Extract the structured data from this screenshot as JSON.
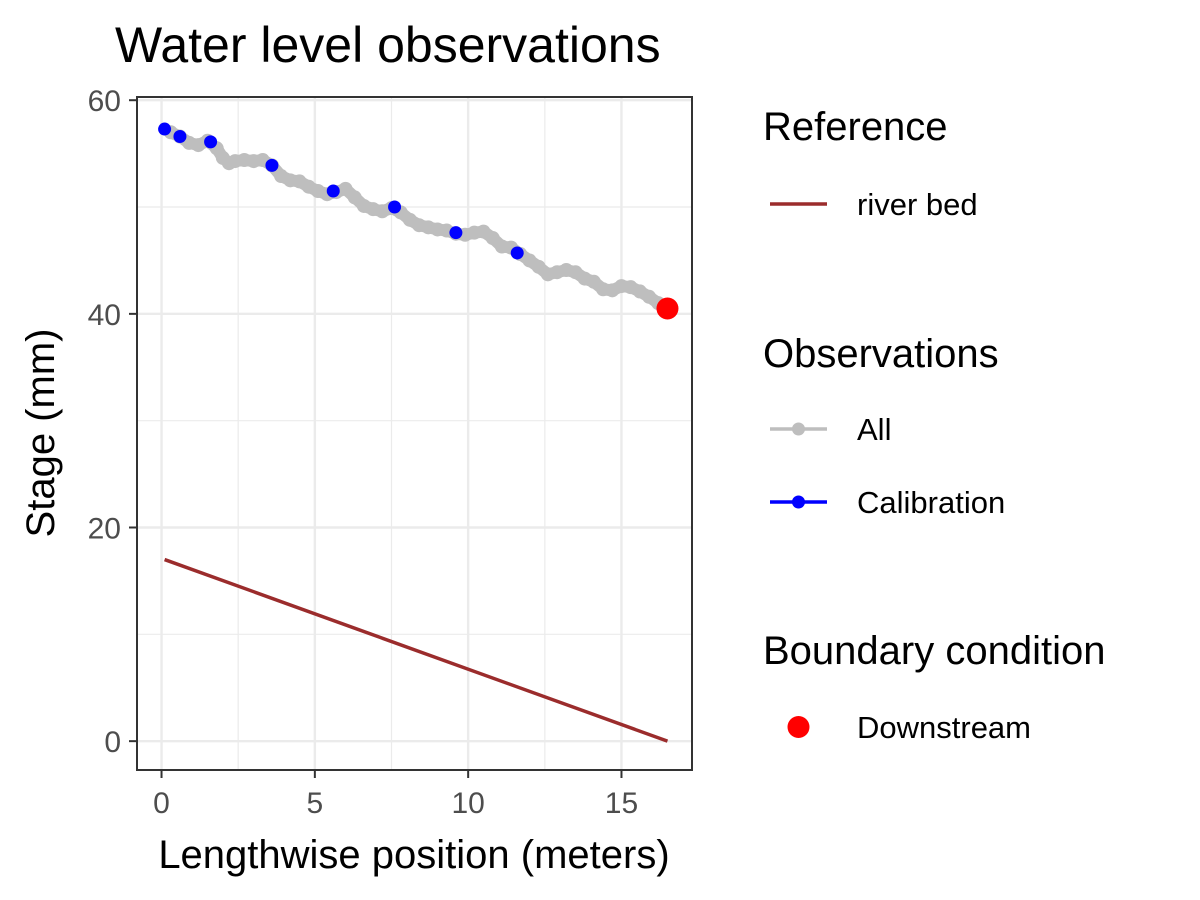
{
  "chart_data": {
    "type": "line",
    "title": "Water level observations",
    "xlabel": "Lengthwise position (meters)",
    "ylabel": "Stage (mm)",
    "xlim": [
      -0.8,
      17.3
    ],
    "ylim": [
      -2.7,
      60.3
    ],
    "x_ticks": [
      0,
      5,
      10,
      15
    ],
    "x_tick_labels": [
      "0",
      "5",
      "10",
      "15"
    ],
    "y_ticks": [
      0,
      20,
      40,
      60
    ],
    "y_tick_labels": [
      "0",
      "20",
      "40",
      "60"
    ],
    "grid": true,
    "legend_position": "right",
    "series": [
      {
        "name": "river bed",
        "color": "#9b2c2c",
        "x": [
          0.1,
          16.5
        ],
        "y": [
          17.0,
          0.0
        ]
      },
      {
        "name": "All",
        "color": "#bebebe",
        "x": [
          0.3,
          0.6,
          0.9,
          1.2,
          1.5,
          1.8,
          2.0,
          2.2,
          2.4,
          2.7,
          3.0,
          3.3,
          3.6,
          3.9,
          4.2,
          4.5,
          4.8,
          5.1,
          5.4,
          5.7,
          6.0,
          6.3,
          6.6,
          6.9,
          7.2,
          7.5,
          7.8,
          8.1,
          8.4,
          8.7,
          9.0,
          9.3,
          9.6,
          9.9,
          10.2,
          10.5,
          10.8,
          11.1,
          11.4,
          11.7,
          12.0,
          12.3,
          12.6,
          12.9,
          13.2,
          13.5,
          13.8,
          14.1,
          14.4,
          14.7,
          15.0,
          15.3,
          15.6,
          15.9,
          16.2
        ],
        "y": [
          57.0,
          56.6,
          56.0,
          55.8,
          56.2,
          55.5,
          54.6,
          54.1,
          54.3,
          54.4,
          54.3,
          54.4,
          53.9,
          52.9,
          52.5,
          52.4,
          51.9,
          51.5,
          51.2,
          51.4,
          51.7,
          50.9,
          50.1,
          49.8,
          49.6,
          49.9,
          49.5,
          48.8,
          48.3,
          48.1,
          47.9,
          47.8,
          47.5,
          47.4,
          47.6,
          47.7,
          47.1,
          46.3,
          46.2,
          45.6,
          45.0,
          44.4,
          43.7,
          43.9,
          44.1,
          43.9,
          43.3,
          43.0,
          42.3,
          42.2,
          42.6,
          42.5,
          42.1,
          41.6,
          41.0
        ]
      },
      {
        "name": "Calibration",
        "color": "#0000ff",
        "x": [
          0.1,
          0.6,
          1.6,
          3.6,
          5.6,
          7.6,
          9.6,
          11.6
        ],
        "y": [
          57.3,
          56.6,
          56.1,
          53.9,
          51.5,
          50.0,
          47.6,
          45.7
        ]
      },
      {
        "name": "Downstream",
        "color": "#ff0000",
        "x": [
          16.5
        ],
        "y": [
          40.5
        ]
      }
    ]
  },
  "legend": {
    "groups": [
      {
        "title": "Reference",
        "items": [
          {
            "label": "river bed",
            "color": "#9b2c2c",
            "kind": "line"
          }
        ]
      },
      {
        "title": "Observations",
        "items": [
          {
            "label": "All",
            "color": "#bebebe",
            "kind": "line-point"
          },
          {
            "label": "Calibration",
            "color": "#0000ff",
            "kind": "line-point"
          }
        ]
      },
      {
        "title": "Boundary condition",
        "items": [
          {
            "label": "Downstream",
            "color": "#ff0000",
            "kind": "point"
          }
        ]
      }
    ]
  }
}
